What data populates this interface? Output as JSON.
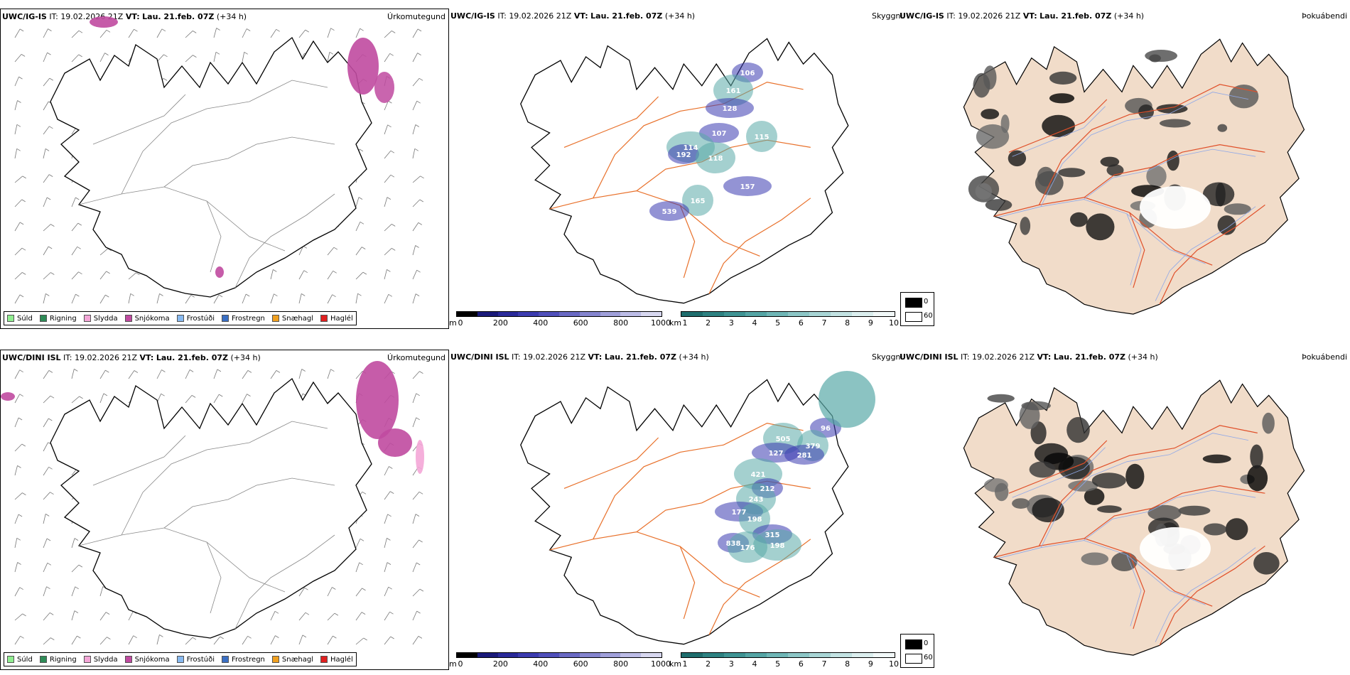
{
  "rows": [
    {
      "model": "UWC/IG-IS",
      "header_rest": " IT: 19.02.2026 21Z ",
      "vt_label": "VT:",
      "vt_value": "Lau. 21.feb. 07Z",
      "lead": " (+34 h)"
    },
    {
      "model": "UWC/DINI ISL",
      "header_rest": " IT: 19.02.2026 21Z ",
      "vt_label": "VT:",
      "vt_value": "Lau. 21.feb. 07Z",
      "lead": " (+34 h)"
    }
  ],
  "panel_titles": {
    "precip": "Úrkomutegund",
    "cloud": "Skyggni",
    "fog": "Þokuábendi"
  },
  "precip_legend": [
    {
      "label": "Súld",
      "color": "#90ee90"
    },
    {
      "label": "Rigning",
      "color": "#2e8b57"
    },
    {
      "label": "Slydda",
      "color": "#f4a6d7"
    },
    {
      "label": "Snjókoma",
      "color": "#c04aa0"
    },
    {
      "label": "Frostúði",
      "color": "#87b9f0"
    },
    {
      "label": "Frostregn",
      "color": "#3a6fc4"
    },
    {
      "label": "Snæhagl",
      "color": "#f0a020"
    },
    {
      "label": "Haglél",
      "color": "#e02020"
    }
  ],
  "height_bar": {
    "unit": "m",
    "ticks": [
      "0",
      "200",
      "400",
      "600",
      "800",
      "1000"
    ],
    "colors": [
      "#000000",
      "#1a1a7a",
      "#2a2a9a",
      "#3c3cb0",
      "#5050bb",
      "#6a6ac4",
      "#8585cf",
      "#a0a0da",
      "#bcbce6",
      "#d8d8f0"
    ]
  },
  "km_bar": {
    "unit": "km",
    "ticks": [
      "1",
      "2",
      "3",
      "4",
      "5",
      "6",
      "7",
      "8",
      "9",
      "10"
    ],
    "colors": [
      "#1f6e6e",
      "#2e8282",
      "#3f9494",
      "#55a5a5",
      "#6fb6b6",
      "#8cc6c6",
      "#a8d5d5",
      "#c3e3e3",
      "#dcefef",
      "#f2f9f9"
    ]
  },
  "fog_legend": {
    "top": "0",
    "bottom": "60",
    "top_color": "#000000",
    "bottom_color": "#ffffff"
  },
  "cloud_labels_top": [
    "106",
    "161",
    "128",
    "115",
    "107",
    "114",
    "192",
    "118",
    "157",
    "165",
    "539"
  ],
  "cloud_labels_bottom": [
    "96",
    "505",
    "127",
    "379",
    "281",
    "421",
    "212",
    "243",
    "177",
    "198",
    "315",
    "198",
    "838",
    "176"
  ],
  "colors": {
    "land_fog": "#f1dcc9",
    "road": "#e8702a",
    "river": "#8fa8e8",
    "coast": "#000000",
    "snow": "#c04aa0",
    "low_cloud": "#3a3ab0",
    "teal": "#5aaaa8"
  }
}
